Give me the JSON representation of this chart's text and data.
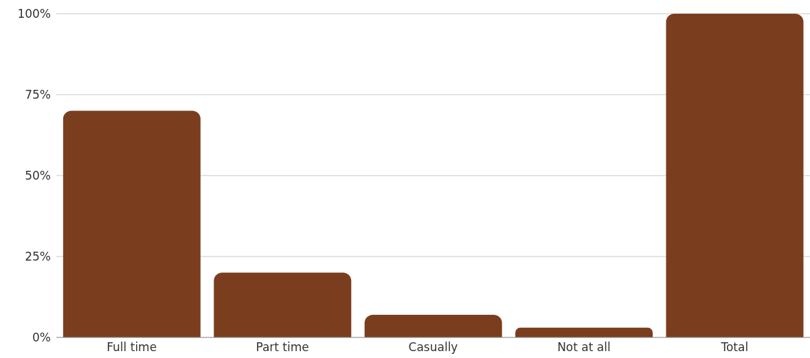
{
  "chart_data": {
    "type": "bar",
    "categories": [
      "Full time",
      "Part time",
      "Casually",
      "Not at all",
      "Total"
    ],
    "values": [
      70,
      20,
      7,
      3,
      100
    ],
    "color": "#7a3e1e",
    "ylim": [
      0,
      100
    ],
    "yticks": [
      {
        "value": 0,
        "label": "0%"
      },
      {
        "value": 25,
        "label": "25%"
      },
      {
        "value": 50,
        "label": "50%"
      },
      {
        "value": 75,
        "label": "75%"
      },
      {
        "value": 100,
        "label": "100%"
      }
    ],
    "grid": "y"
  }
}
